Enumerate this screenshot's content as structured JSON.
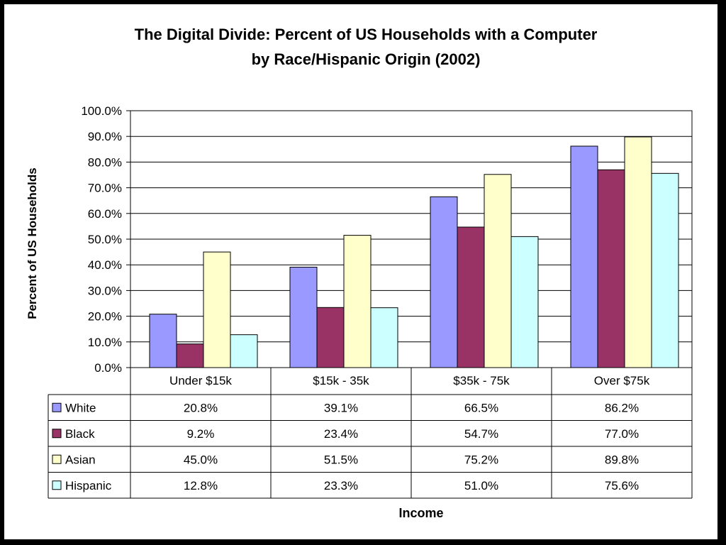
{
  "chart_data": {
    "type": "bar",
    "title_line1": "The Digital Divide: Percent of US Households with a Computer",
    "title_line2": "by Race/Hispanic Origin (2002)",
    "xlabel": "Income",
    "ylabel": "Percent of US Households",
    "ylim": [
      0,
      100
    ],
    "yticks": [
      "0.0%",
      "10.0%",
      "20.0%",
      "30.0%",
      "40.0%",
      "50.0%",
      "60.0%",
      "70.0%",
      "80.0%",
      "90.0%",
      "100.0%"
    ],
    "grid": true,
    "categories": [
      "Under $15k",
      "$15k - 35k",
      "$35k - 75k",
      "Over $75k"
    ],
    "series": [
      {
        "name": "White",
        "color": "#9999ff",
        "values": [
          20.8,
          39.1,
          66.5,
          86.2
        ],
        "labels": [
          "20.8%",
          "39.1%",
          "66.5%",
          "86.2%"
        ]
      },
      {
        "name": "Black",
        "color": "#993366",
        "values": [
          9.2,
          23.4,
          54.7,
          77.0
        ],
        "labels": [
          "9.2%",
          "23.4%",
          "54.7%",
          "77.0%"
        ]
      },
      {
        "name": "Asian",
        "color": "#ffffcc",
        "values": [
          45.0,
          51.5,
          75.2,
          89.8
        ],
        "labels": [
          "45.0%",
          "51.5%",
          "75.2%",
          "89.8%"
        ]
      },
      {
        "name": "Hispanic",
        "color": "#ccffff",
        "values": [
          12.8,
          23.3,
          51.0,
          75.6
        ],
        "labels": [
          "12.8%",
          "23.3%",
          "51.0%",
          "75.6%"
        ]
      }
    ],
    "legend": "data-table"
  }
}
